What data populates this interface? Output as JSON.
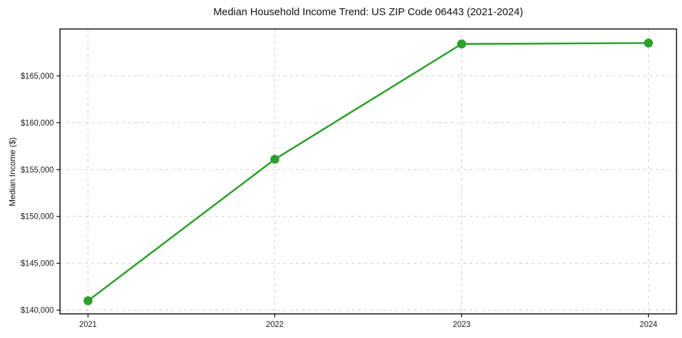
{
  "chart_data": {
    "type": "line",
    "title": "Median Household Income Trend: US ZIP Code 06443 (2021-2024)",
    "xlabel": "",
    "ylabel": "Median Income ($)",
    "x": [
      2021,
      2022,
      2023,
      2024
    ],
    "series": [
      {
        "values": [
          141000,
          156100,
          168400,
          168500
        ],
        "color": "#2ca02c",
        "line_width": 2.6,
        "marker": "circle",
        "marker_radius": 6.5
      }
    ],
    "xlim": [
      2020.85,
      2024.15
    ],
    "ylim": [
      139600,
      170000
    ],
    "x_ticks": [
      {
        "value": 2021,
        "label": "2021"
      },
      {
        "value": 2022,
        "label": "2022"
      },
      {
        "value": 2023,
        "label": "2023"
      },
      {
        "value": 2024,
        "label": "2024"
      }
    ],
    "y_ticks": [
      {
        "value": 140000,
        "label": "$140,000"
      },
      {
        "value": 145000,
        "label": "$145,000"
      },
      {
        "value": 150000,
        "label": "$150,000"
      },
      {
        "value": 155000,
        "label": "$155,000"
      },
      {
        "value": 160000,
        "label": "$160,000"
      },
      {
        "value": 165000,
        "label": "$165,000"
      }
    ],
    "grid": {
      "show": true,
      "style": "dashed",
      "color": "#cccccc"
    },
    "legend_position": "none",
    "spine_color": "#000000",
    "tick_label_color": "#1a1a1a",
    "background_color": "#ffffff"
  }
}
